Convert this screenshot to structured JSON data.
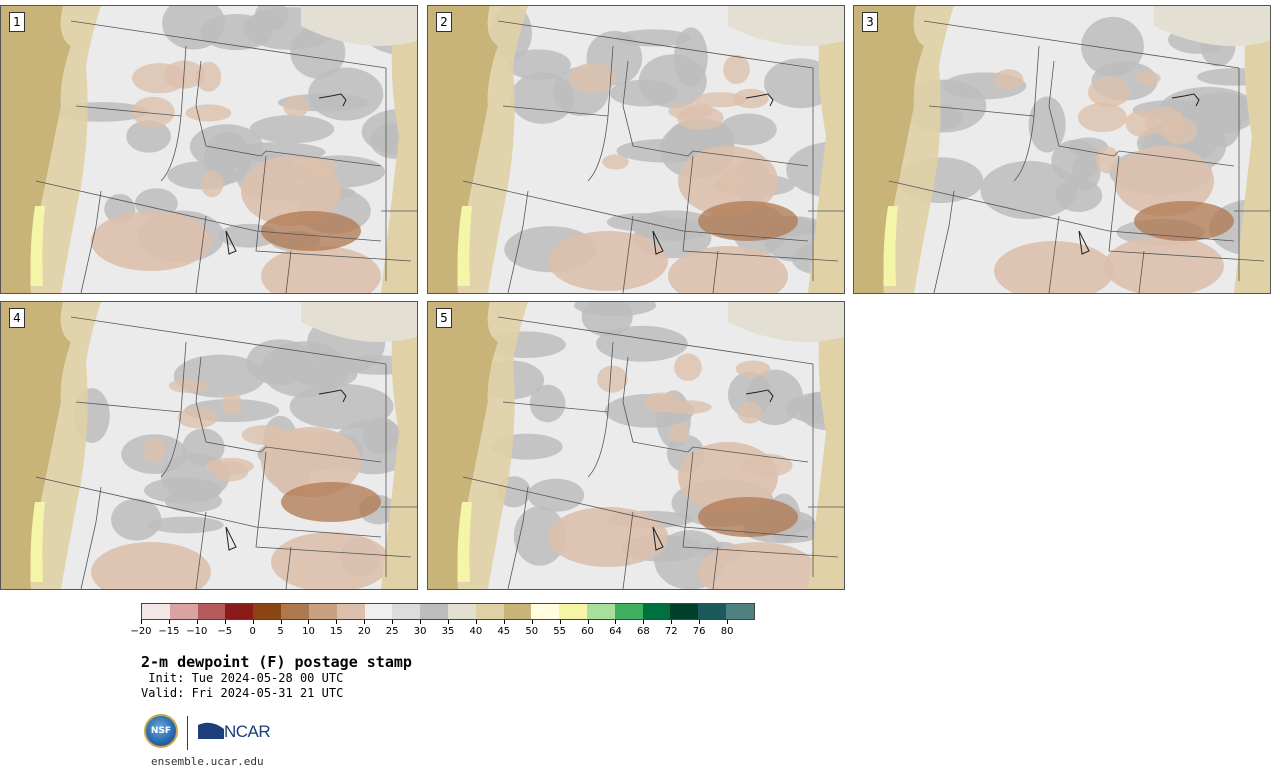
{
  "panels": [
    {
      "label": "1"
    },
    {
      "label": "2"
    },
    {
      "label": "3"
    },
    {
      "label": "4"
    },
    {
      "label": "5"
    }
  ],
  "colorbar": {
    "colors": [
      "#f2e6e6",
      "#d9a3a3",
      "#b55a5a",
      "#8c1a1a",
      "#8b4513",
      "#b07850",
      "#c9a080",
      "#dcc0ad",
      "#efefef",
      "#dcdcdc",
      "#bdbdbd",
      "#e3e0d3",
      "#e0d1a6",
      "#c8b478",
      "#fffce0",
      "#f5f5a8",
      "#a8e09a",
      "#40b060",
      "#007040",
      "#00402b",
      "#1a5a5a",
      "#508080"
    ],
    "tick_labels": [
      "−20",
      "−15",
      "−10",
      "−5",
      "0",
      "5",
      "10",
      "15",
      "20",
      "25",
      "30",
      "35",
      "40",
      "45",
      "50",
      "55",
      "60",
      "64",
      "68",
      "72",
      "76",
      "80"
    ]
  },
  "title": "2-m dewpoint (F) postage stamp",
  "init": " Init: Tue 2024-05-28 00 UTC",
  "valid": "Valid: Fri 2024-05-31 21 UTC",
  "logos": {
    "nsf": "NSF",
    "ncar": "NCAR"
  },
  "url": "ensemble.ucar.edu",
  "map_colors": {
    "ocean": "#c8b478",
    "land_light": "#ebebeb",
    "land_gray": "#bdbdbd",
    "tan": "#dcc0ad",
    "brown": "#b07850",
    "pale_yellow": "#f5f5a8",
    "border": "#555555"
  }
}
